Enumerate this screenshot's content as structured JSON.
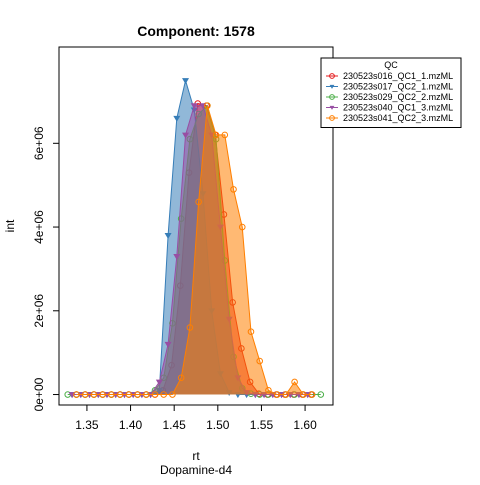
{
  "chart_data": {
    "type": "area",
    "title": "Component: 1578",
    "xlabel": "rt",
    "sublabel": "Dopamine-d4",
    "ylabel": "int",
    "xlim": [
      1.318,
      1.632
    ],
    "ylim": [
      -250000,
      8300000
    ],
    "x_ticks": [
      1.35,
      1.4,
      1.45,
      1.5,
      1.55,
      1.6
    ],
    "x_tick_labels": [
      "1.35",
      "1.40",
      "1.45",
      "1.50",
      "1.55",
      "1.60"
    ],
    "y_ticks": [
      0,
      2000000,
      4000000,
      6000000
    ],
    "y_tick_labels": [
      "0e+00",
      "2e+06",
      "4e+06",
      "6e+06"
    ],
    "legend": {
      "title": "QC",
      "position": "top-right"
    },
    "series": [
      {
        "name": "230523s016_QC1_1.mzML",
        "color": "#e41a1c",
        "marker": "circle",
        "x": [
          1.338,
          1.348,
          1.358,
          1.368,
          1.378,
          1.388,
          1.398,
          1.408,
          1.418,
          1.428,
          1.437,
          1.447,
          1.457,
          1.467,
          1.477,
          1.487,
          1.497,
          1.507,
          1.517,
          1.527,
          1.537,
          1.547,
          1.557,
          1.567,
          1.577,
          1.587,
          1.597,
          1.607
        ],
        "y": [
          0,
          0,
          0,
          0,
          0,
          0,
          0,
          0,
          0,
          0,
          100000,
          700000,
          2600000,
          5300000,
          6950000,
          6900000,
          6200000,
          4300000,
          2200000,
          1100000,
          300000,
          20000,
          0,
          0,
          0,
          0,
          0,
          0
        ]
      },
      {
        "name": "230523s017_QC2_1.mzML",
        "color": "#377eb8",
        "marker": "triangle",
        "x": [
          1.333,
          1.343,
          1.353,
          1.363,
          1.373,
          1.383,
          1.393,
          1.403,
          1.413,
          1.423,
          1.433,
          1.443,
          1.453,
          1.463,
          1.473,
          1.483,
          1.493,
          1.503,
          1.513,
          1.523,
          1.533,
          1.543,
          1.553,
          1.563,
          1.573,
          1.583,
          1.593,
          1.603
        ],
        "y": [
          0,
          0,
          0,
          0,
          0,
          0,
          0,
          0,
          0,
          0,
          100000,
          3800000,
          6600000,
          7500000,
          6800000,
          4800000,
          2000000,
          500000,
          50000,
          0,
          0,
          0,
          0,
          0,
          0,
          0,
          0,
          0
        ]
      },
      {
        "name": "230523s029_QC2_2.mzML",
        "color": "#4daf4a",
        "marker": "circle",
        "x": [
          1.328,
          1.338,
          1.348,
          1.358,
          1.368,
          1.378,
          1.388,
          1.398,
          1.408,
          1.418,
          1.428,
          1.438,
          1.448,
          1.458,
          1.468,
          1.478,
          1.488,
          1.498,
          1.508,
          1.518,
          1.528,
          1.538,
          1.548,
          1.558,
          1.568,
          1.578,
          1.588,
          1.598,
          1.608,
          1.618
        ],
        "y": [
          0,
          0,
          0,
          0,
          0,
          0,
          0,
          0,
          0,
          0,
          100000,
          400000,
          1700000,
          4200000,
          6100000,
          6700000,
          6900000,
          6100000,
          3200000,
          900000,
          150000,
          20000,
          0,
          0,
          0,
          0,
          0,
          0,
          0,
          0
        ]
      },
      {
        "name": "230523s040_QC1_3.mzML",
        "color": "#984ea3",
        "marker": "triangle",
        "x": [
          1.333,
          1.343,
          1.353,
          1.363,
          1.373,
          1.383,
          1.393,
          1.403,
          1.413,
          1.423,
          1.433,
          1.443,
          1.453,
          1.463,
          1.473,
          1.483,
          1.493,
          1.503,
          1.513,
          1.523,
          1.533,
          1.543,
          1.553,
          1.563,
          1.573,
          1.583,
          1.593,
          1.603
        ],
        "y": [
          0,
          0,
          0,
          0,
          0,
          0,
          0,
          0,
          0,
          0,
          300000,
          1200000,
          3300000,
          6200000,
          6900000,
          6900000,
          6200000,
          4000000,
          1800000,
          400000,
          50000,
          0,
          0,
          0,
          0,
          0,
          0,
          0
        ]
      },
      {
        "name": "230523s041_QC2_3.mzML",
        "color": "#ff7f00",
        "marker": "circle",
        "x": [
          1.338,
          1.348,
          1.358,
          1.368,
          1.378,
          1.388,
          1.398,
          1.408,
          1.418,
          1.428,
          1.438,
          1.448,
          1.458,
          1.468,
          1.478,
          1.488,
          1.498,
          1.508,
          1.518,
          1.528,
          1.538,
          1.548,
          1.558,
          1.568,
          1.578,
          1.588,
          1.598,
          1.608
        ],
        "y": [
          0,
          0,
          0,
          0,
          0,
          0,
          0,
          0,
          0,
          0,
          0,
          0,
          400000,
          1600000,
          4600000,
          6900000,
          6200000,
          6200000,
          4900000,
          4000000,
          1500000,
          800000,
          100000,
          0,
          0,
          300000,
          0,
          0
        ]
      }
    ]
  }
}
